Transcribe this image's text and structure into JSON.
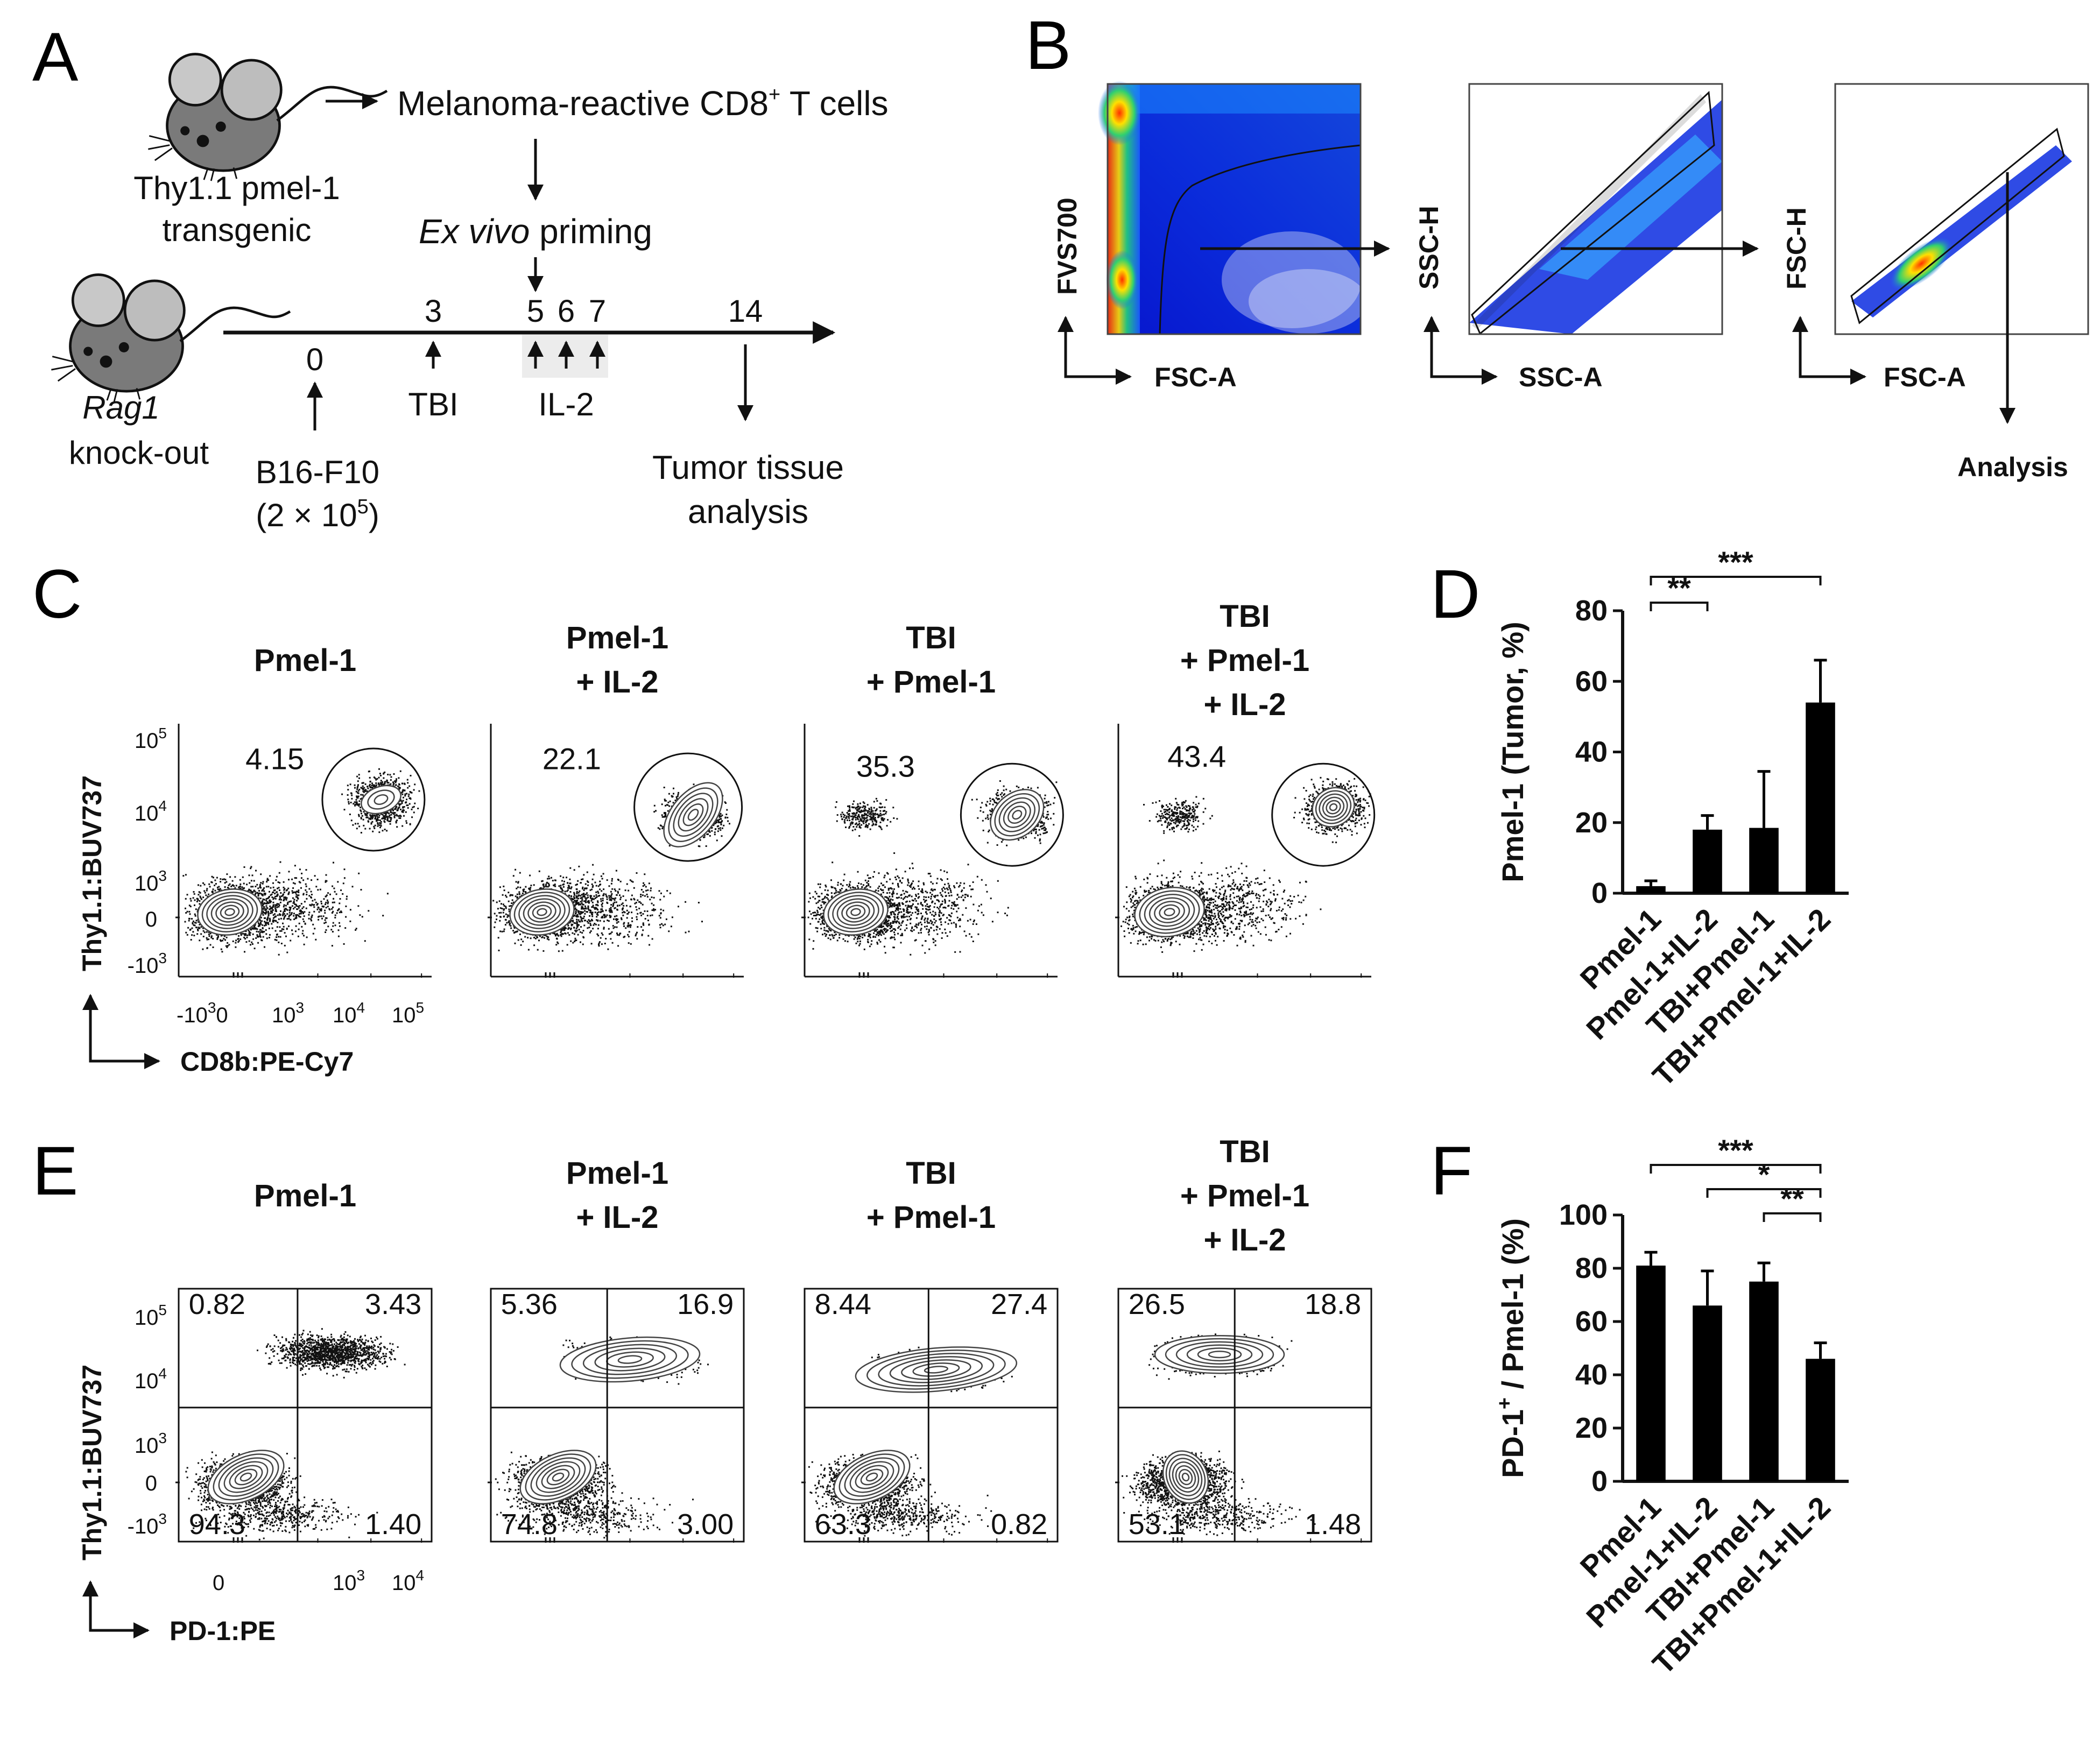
{
  "panel_letters": {
    "a": "A",
    "b": "B",
    "c": "C",
    "d": "D",
    "e": "E",
    "f": "F"
  },
  "panelA": {
    "donor_line1": "Thy1.1 pmel-1",
    "donor_line2": "transgenic",
    "cells_label": "Melanoma-reactive CD8",
    "cells_sup": "+",
    "cells_suffix": " T cells",
    "priming_italic": "Ex vivo",
    "priming_rest": " priming",
    "host_italic": "Rag1",
    "host_line2": "knock-out",
    "days": {
      "d0": "0",
      "d3": "3",
      "d5": "5",
      "d6": "6",
      "d7": "7",
      "d14": "14"
    },
    "tbi": "TBI",
    "il2": "IL-2",
    "tumor_line1": "B16-F10",
    "tumor_line2": "(2 × 10",
    "tumor_sup": "5",
    "tumor_close": ")",
    "analysis_line1": "Tumor tissue",
    "analysis_line2": "analysis"
  },
  "panelB": {
    "plot1": {
      "ylabel": "FVS700",
      "xlabel": "FSC-A"
    },
    "plot2": {
      "ylabel": "SSC-H",
      "xlabel": "SSC-A"
    },
    "plot3": {
      "ylabel": "FSC-H",
      "xlabel": "FSC-A"
    },
    "final": "Analysis"
  },
  "panelC": {
    "ylabel": "Thy1.1:BUV737",
    "xlabel": "CD8b:PE-Cy7",
    "yticks": {
      "y5": "10",
      "y4": "10",
      "y3": "10",
      "y0": "0",
      "yn3": "-10",
      "s5": "5",
      "s4": "4",
      "s3": "3",
      "sn3": "3"
    },
    "xticks": {
      "xn": "-10",
      "x0": "0",
      "x3": "10",
      "x4": "10",
      "x5": "10",
      "sn": "3",
      "s3": "3",
      "s4": "4",
      "s5": "5"
    },
    "groups": [
      {
        "l1": "Pmel-1",
        "l2": "",
        "l3": "",
        "value": "4.15"
      },
      {
        "l1": "Pmel-1",
        "l2": "+ IL-2",
        "l3": "",
        "value": "22.1"
      },
      {
        "l1": "TBI",
        "l2": "+ Pmel-1",
        "l3": "",
        "value": "35.3"
      },
      {
        "l1": "TBI",
        "l2": "+ Pmel-1",
        "l3": "+ IL-2",
        "value": "43.4"
      }
    ]
  },
  "panelE": {
    "ylabel": "Thy1.1:BUV737",
    "xlabel": "PD-1:PE",
    "yticks": {
      "y5": "10",
      "y4": "10",
      "y3": "10",
      "y0": "0",
      "yn3": "-10",
      "s5": "5",
      "s4": "4",
      "s3": "3",
      "sn3": "3"
    },
    "xticks": {
      "x0": "0",
      "x3": "10",
      "x4": "10",
      "s3": "3",
      "s4": "4"
    },
    "groups": [
      {
        "l1": "Pmel-1",
        "l2": "",
        "l3": "",
        "ul": "0.82",
        "ur": "3.43",
        "ll": "94.3",
        "lr": "1.40"
      },
      {
        "l1": "Pmel-1",
        "l2": "+ IL-2",
        "l3": "",
        "ul": "5.36",
        "ur": "16.9",
        "ll": "74.8",
        "lr": "3.00"
      },
      {
        "l1": "TBI",
        "l2": "+ Pmel-1",
        "l3": "",
        "ul": "8.44",
        "ur": "27.4",
        "ll": "63.3",
        "lr": "0.82"
      },
      {
        "l1": "TBI",
        "l2": "+ Pmel-1",
        "l3": "+ IL-2",
        "ul": "26.5",
        "ur": "18.8",
        "ll": "53.1",
        "lr": "1.48"
      }
    ]
  },
  "chart_data": [
    {
      "id": "D",
      "type": "bar",
      "title": "",
      "xlabel": "",
      "ylabel": "Pmel-1 (Tumor, %)",
      "categories": [
        "Pmel-1",
        "Pmel-1+IL-2",
        "TBI+Pmel-1",
        "TBI+Pmel-1+IL-2"
      ],
      "values": [
        2,
        18,
        18.5,
        54
      ],
      "errors": [
        1.5,
        4,
        16,
        12
      ],
      "ylim": [
        0,
        80
      ],
      "yticks": [
        0,
        20,
        40,
        60,
        80
      ],
      "yticklabels": [
        "0",
        "20",
        "40",
        "60",
        "80"
      ],
      "significance": [
        {
          "from": 0,
          "to": 1,
          "label": "**"
        },
        {
          "from": 0,
          "to": 3,
          "label": "***"
        }
      ]
    },
    {
      "id": "F",
      "type": "bar",
      "title": "",
      "xlabel": "",
      "ylabel": "PD-1+ / Pmel-1 (%)",
      "ylabel_parts": {
        "pre": "PD-1",
        "sup": "+",
        "post": " / Pmel-1 (%)"
      },
      "categories": [
        "Pmel-1",
        "Pmel-1+IL-2",
        "TBI+Pmel-1",
        "TBI+Pmel-1+IL-2"
      ],
      "values": [
        81,
        66,
        75,
        46
      ],
      "errors": [
        5,
        13,
        7,
        6
      ],
      "ylim": [
        0,
        100
      ],
      "yticks": [
        0,
        20,
        40,
        60,
        80,
        100
      ],
      "yticklabels": [
        "0",
        "20",
        "40",
        "60",
        "80",
        "100"
      ],
      "significance": [
        {
          "from": 0,
          "to": 3,
          "label": "***"
        },
        {
          "from": 1,
          "to": 3,
          "label": "*"
        },
        {
          "from": 2,
          "to": 3,
          "label": "**"
        }
      ]
    }
  ]
}
